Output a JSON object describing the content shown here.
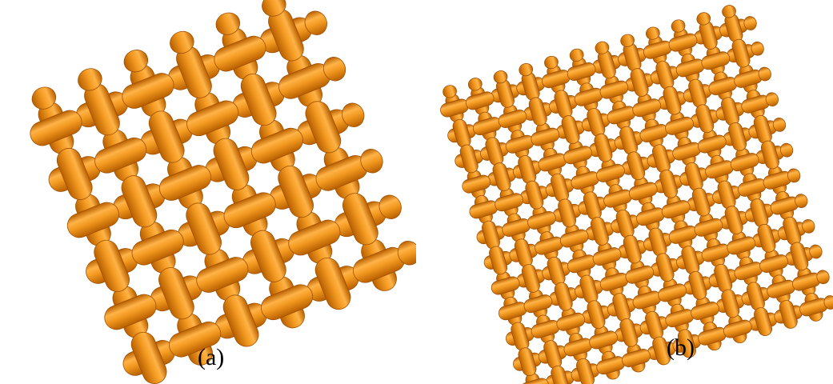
{
  "figure": {
    "panels": [
      {
        "id": "a",
        "caption": "(a)",
        "weave": "plain",
        "threads_per_direction": 6
      },
      {
        "id": "b",
        "caption": "(b)",
        "weave": "twill",
        "threads_per_direction": 12
      }
    ],
    "colors": {
      "yarn_light": "#ffb347",
      "yarn_mid": "#f39a21",
      "yarn_dark": "#b85f00",
      "yarn_edge": "#a04f00",
      "background": "#ffffff"
    }
  }
}
